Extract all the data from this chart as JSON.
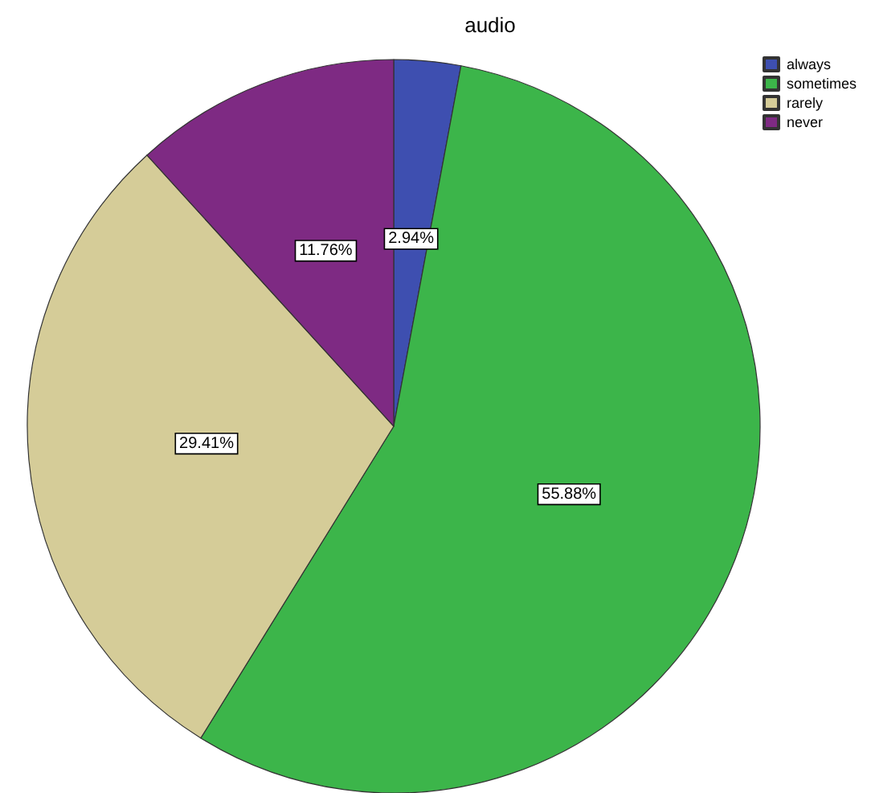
{
  "chart_data": {
    "type": "pie",
    "title": "audio",
    "categories": [
      "always",
      "sometimes",
      "rarely",
      "never"
    ],
    "values": [
      2.94,
      55.88,
      29.41,
      11.76
    ],
    "colors": [
      "#3e4fb0",
      "#3cb54a",
      "#d5cc98",
      "#7e2a83"
    ],
    "value_labels": [
      "2.94%",
      "55.88%",
      "29.41%",
      "11.76%"
    ],
    "legend": "top right"
  }
}
